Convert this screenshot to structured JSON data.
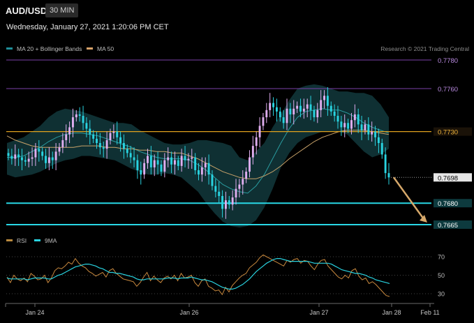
{
  "header": {
    "symbol": "AUD/USD",
    "timeframe": "30 MIN"
  },
  "datetime": "Wednesday, January 27, 2021 1:20:06 PM CET",
  "credit": "Research © 2021 Trading Central",
  "price_legend": [
    {
      "label": "MA 20 + Bollinger Bands",
      "color": "#1f8f9a"
    },
    {
      "label": "MA 50",
      "color": "#d9a36a"
    }
  ],
  "rsi_legend": [
    {
      "label": "RSI",
      "color": "#b9893e"
    },
    {
      "label": "9MA",
      "color": "#29d3e0"
    }
  ],
  "colors": {
    "up": "#e0aef0",
    "down": "#29d3e0",
    "band_fill": "#0f3033",
    "ma20": "#2a9b9f",
    "ma50": "#c9a36a",
    "resistance": "#7a3fa8",
    "pivot": "#e0a21e",
    "support": "#29d8e6",
    "arrow": "#d6a86a",
    "rsi": "#c9893e",
    "rsi_ma": "#29d3e0"
  },
  "chart_data": [
    {
      "type": "candlestick",
      "title": "AUD/USD",
      "ylim": [
        0.766,
        0.7785
      ],
      "x_ticks": [
        "Jan 24",
        "Jan 26",
        "Jan 27",
        "Jan 28",
        "Feb 11"
      ],
      "horizontal_levels": [
        {
          "label": "0.7780",
          "value": 0.778,
          "role": "resistance"
        },
        {
          "label": "0.7760",
          "value": 0.776,
          "role": "resistance"
        },
        {
          "label": "0.7730",
          "value": 0.773,
          "role": "pivot"
        },
        {
          "label": "0.7680",
          "value": 0.768,
          "role": "support"
        },
        {
          "label": "0.7665",
          "value": 0.7665,
          "role": "support"
        }
      ],
      "current_price": {
        "label": "0.7698",
        "value": 0.7698
      },
      "forecast_arrow": {
        "from": 0.7698,
        "to": 0.7665
      },
      "series_close": [
        0.7713,
        0.7711,
        0.7714,
        0.7712,
        0.771,
        0.7709,
        0.7711,
        0.7712,
        0.7718,
        0.7716,
        0.7713,
        0.7708,
        0.7712,
        0.771,
        0.7716,
        0.7719,
        0.7724,
        0.7728,
        0.7733,
        0.774,
        0.7742,
        0.7741,
        0.7736,
        0.7732,
        0.7728,
        0.7725,
        0.7722,
        0.7719,
        0.7718,
        0.7724,
        0.7729,
        0.773,
        0.7726,
        0.7722,
        0.7718,
        0.7715,
        0.7712,
        0.771,
        0.7703,
        0.77,
        0.7708,
        0.7713,
        0.7705,
        0.771,
        0.7707,
        0.7702,
        0.771,
        0.7712,
        0.7707,
        0.771,
        0.7706,
        0.7713,
        0.771,
        0.7711,
        0.7712,
        0.7703,
        0.77,
        0.7705,
        0.7708,
        0.77,
        0.7692,
        0.7688,
        0.7685,
        0.7676,
        0.7682,
        0.7679,
        0.7684,
        0.769,
        0.7693,
        0.7697,
        0.7702,
        0.7712,
        0.772,
        0.7726,
        0.7734,
        0.774,
        0.7745,
        0.775,
        0.7747,
        0.7744,
        0.774,
        0.7736,
        0.7746,
        0.7742,
        0.7746,
        0.7748,
        0.7744,
        0.7746,
        0.7749,
        0.7745,
        0.774,
        0.7745,
        0.7752,
        0.7755,
        0.7748,
        0.7744,
        0.7741,
        0.7737,
        0.7733,
        0.7736,
        0.7732,
        0.7738,
        0.7742,
        0.7735,
        0.7731,
        0.7735,
        0.7728,
        0.773,
        0.7726,
        0.7722,
        0.7714,
        0.7701,
        0.7698
      ],
      "bands": {
        "upper": [
          0.7722,
          0.7724,
          0.7726,
          0.773,
          0.7734,
          0.774,
          0.7744,
          0.7746,
          0.7745,
          0.7744,
          0.7742,
          0.774,
          0.7738,
          0.7736,
          0.7736,
          0.7735,
          0.7731,
          0.7728,
          0.7725,
          0.7722,
          0.7721,
          0.7721,
          0.7722,
          0.7724,
          0.7724,
          0.7723,
          0.7722,
          0.772,
          0.7712,
          0.771,
          0.7716,
          0.7722,
          0.7733,
          0.7742,
          0.7752,
          0.776,
          0.7762,
          0.7763,
          0.7762,
          0.776,
          0.7758,
          0.7758,
          0.7757,
          0.7757,
          0.7755,
          0.7749,
          0.774
        ],
        "lower": [
          0.77,
          0.7698,
          0.7699,
          0.77,
          0.7702,
          0.7705,
          0.7708,
          0.771,
          0.7711,
          0.7713,
          0.7713,
          0.7712,
          0.7711,
          0.771,
          0.7707,
          0.7704,
          0.7702,
          0.77,
          0.77,
          0.7701,
          0.77,
          0.7698,
          0.7693,
          0.7688,
          0.768,
          0.7673,
          0.7667,
          0.7664,
          0.7663,
          0.7664,
          0.7668,
          0.7677,
          0.769,
          0.7705,
          0.7715,
          0.7722,
          0.7726,
          0.7728,
          0.773,
          0.773,
          0.773,
          0.7728,
          0.7722,
          0.7716,
          0.7712,
          0.7714,
          0.7718
        ],
        "ma20": [
          0.7712,
          0.7712,
          0.7713,
          0.7716,
          0.7719,
          0.7723,
          0.7726,
          0.7728,
          0.7729,
          0.7729,
          0.7728,
          0.7727,
          0.7725,
          0.7723,
          0.7721,
          0.7719,
          0.7716,
          0.7714,
          0.7712,
          0.7711,
          0.7711,
          0.7711,
          0.771,
          0.7707,
          0.7703,
          0.7698,
          0.7693,
          0.769,
          0.7688,
          0.7687,
          0.7692,
          0.77,
          0.7711,
          0.7722,
          0.7732,
          0.774,
          0.7744,
          0.7745,
          0.7746,
          0.7745,
          0.7745,
          0.7743,
          0.774,
          0.7736,
          0.7733,
          0.7731,
          0.7729
        ],
        "ma50": [
          0.7727,
          0.7724,
          0.7722,
          0.772,
          0.7719,
          0.7719,
          0.7719,
          0.7719,
          0.7719,
          0.772,
          0.772,
          0.772,
          0.7719,
          0.7719,
          0.7718,
          0.7718,
          0.7717,
          0.7717,
          0.7716,
          0.7716,
          0.7715,
          0.7715,
          0.7713,
          0.7711,
          0.7708,
          0.7705,
          0.7702,
          0.77,
          0.7698,
          0.7697,
          0.7697,
          0.7699,
          0.7702,
          0.7706,
          0.7711,
          0.7715,
          0.7719,
          0.7723,
          0.7726,
          0.7728,
          0.773,
          0.7731,
          0.7731,
          0.7731,
          0.773,
          0.7729,
          0.7728
        ]
      }
    },
    {
      "type": "line",
      "title": "RSI",
      "ylim": [
        20,
        80
      ],
      "y_ticks": [
        "70",
        "50",
        "30"
      ],
      "series": [
        {
          "name": "RSI",
          "values": [
            48,
            42,
            50,
            46,
            44,
            47,
            43,
            52,
            49,
            45,
            46,
            50,
            42,
            47,
            55,
            58,
            57,
            60,
            64,
            62,
            68,
            63,
            60,
            58,
            54,
            52,
            49,
            51,
            53,
            48,
            55,
            57,
            52,
            49,
            46,
            45,
            44,
            43,
            38,
            42,
            48,
            53,
            44,
            49,
            45,
            42,
            47,
            49,
            46,
            50,
            44,
            52,
            47,
            48,
            50,
            42,
            38,
            44,
            46,
            38,
            36,
            33,
            34,
            29,
            37,
            32,
            39,
            43,
            47,
            50,
            52,
            58,
            61,
            64,
            69,
            72,
            70,
            68,
            66,
            64,
            62,
            60,
            66,
            64,
            67,
            68,
            63,
            66,
            65,
            60,
            56,
            62,
            66,
            67,
            60,
            56,
            52,
            48,
            46,
            50,
            47,
            55,
            57,
            49,
            45,
            47,
            41,
            43,
            40,
            36,
            32,
            28,
            27
          ]
        },
        {
          "name": "9MA",
          "values": [
            47,
            46,
            46,
            46,
            46,
            46,
            45,
            46,
            47,
            47,
            47,
            47,
            46,
            46,
            48,
            50,
            51,
            53,
            55,
            57,
            59,
            60,
            61,
            62,
            62,
            61,
            60,
            58,
            57,
            55,
            53,
            53,
            52,
            52,
            51,
            50,
            49,
            48,
            46,
            45,
            45,
            46,
            46,
            46,
            46,
            46,
            46,
            47,
            47,
            47,
            46,
            47,
            47,
            47,
            48,
            47,
            46,
            45,
            45,
            44,
            43,
            41,
            39,
            37,
            36,
            35,
            35,
            36,
            38,
            40,
            43,
            46,
            50,
            54,
            57,
            60,
            63,
            65,
            67,
            68,
            68,
            67,
            66,
            65,
            65,
            65,
            65,
            65,
            65,
            64,
            63,
            63,
            63,
            63,
            63,
            62,
            60,
            58,
            56,
            55,
            54,
            53,
            52,
            52,
            51,
            50,
            48,
            47,
            45,
            44,
            43,
            42,
            41
          ]
        }
      ]
    }
  ]
}
